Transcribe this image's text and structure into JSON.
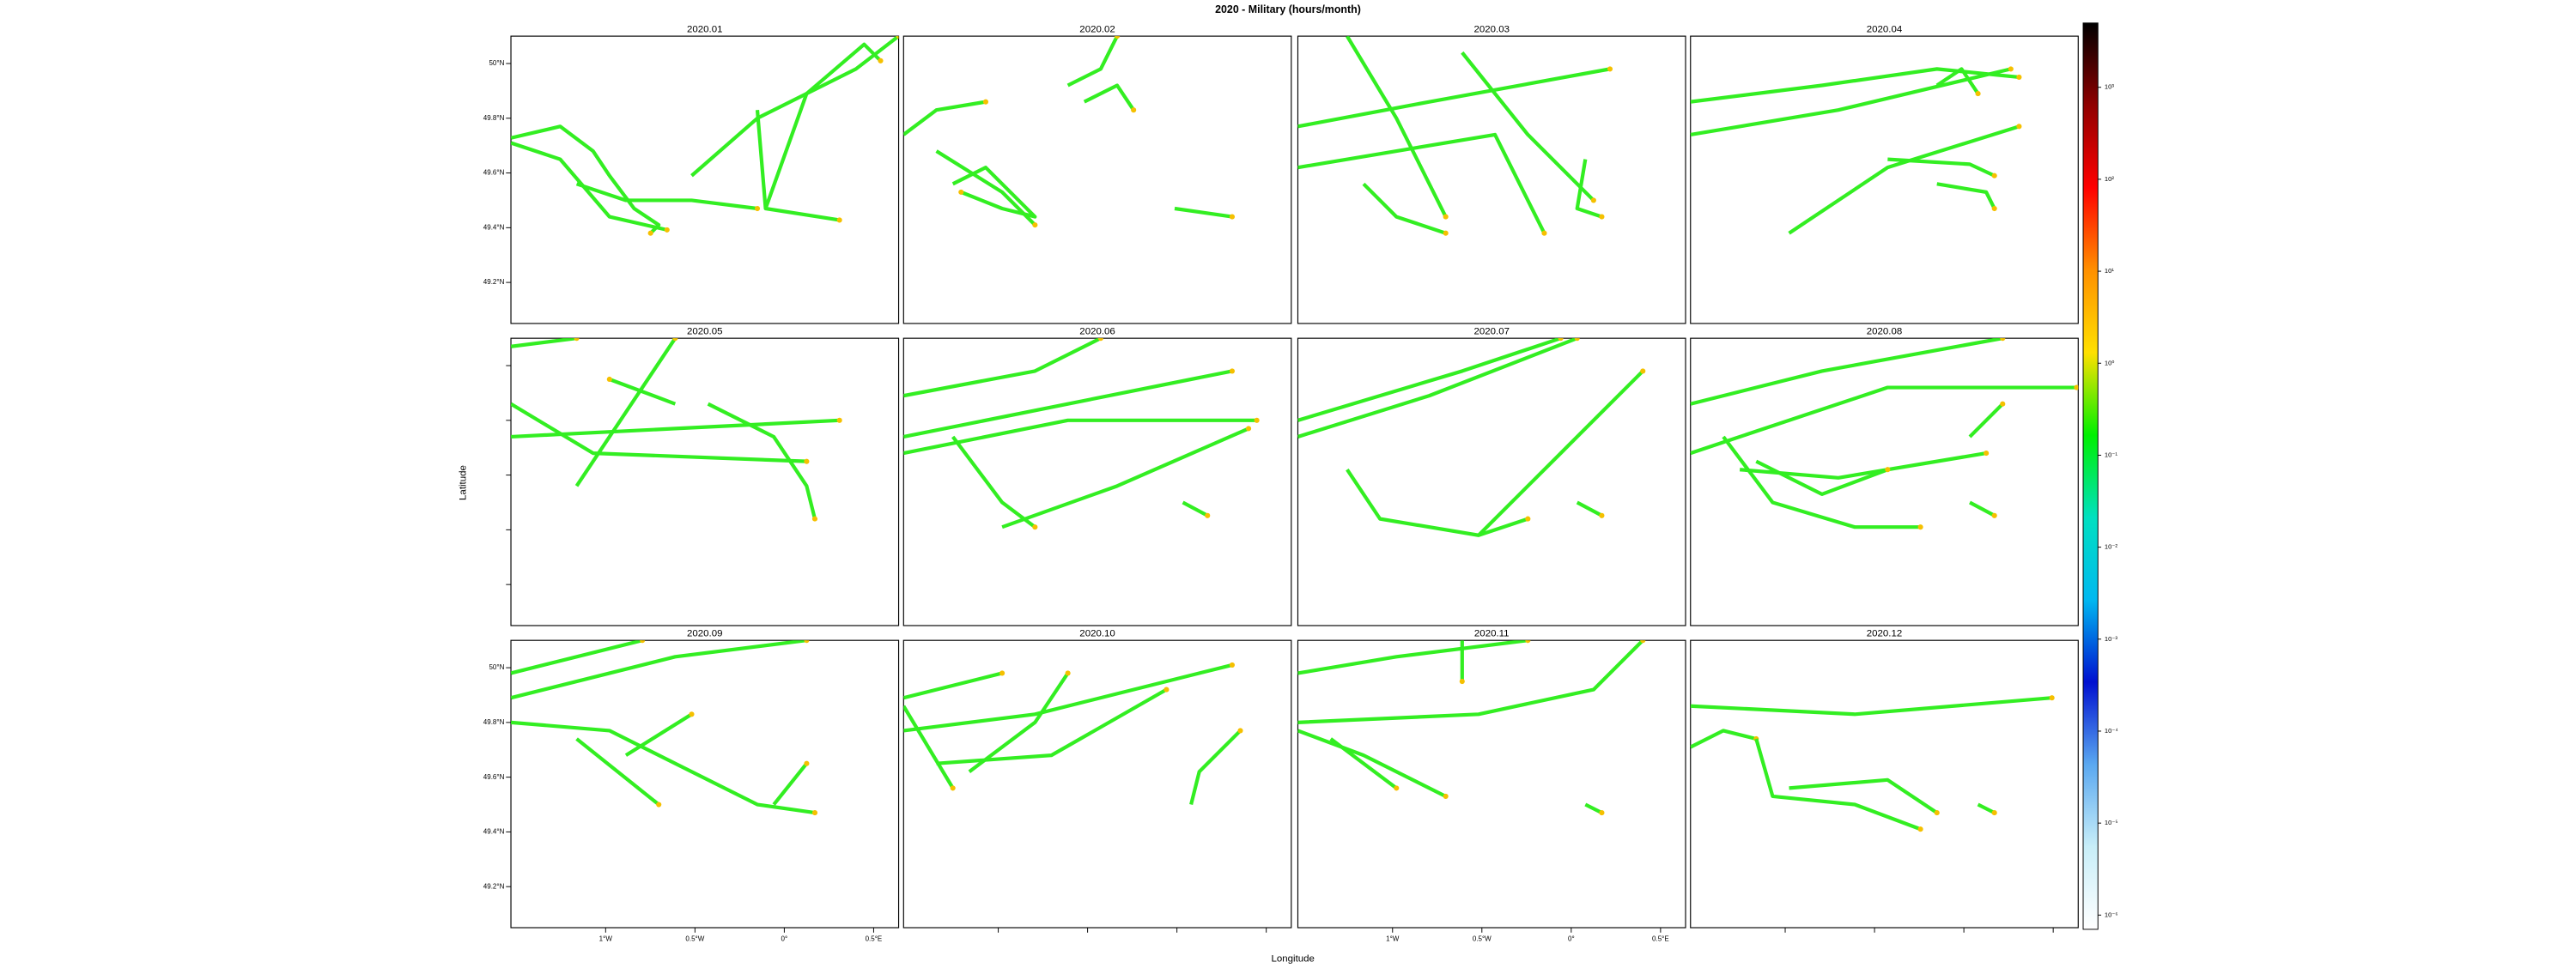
{
  "chart_data": {
    "type": "map",
    "title": "2020 - Military (hours/month)",
    "x_label": "Longitude",
    "y_label": "Latitude",
    "panels": [
      "2020.01",
      "2020.02",
      "2020.03",
      "2020.04",
      "2020.05",
      "2020.06",
      "2020.07",
      "2020.08",
      "2020.09",
      "2020.10",
      "2020.11",
      "2020.12"
    ],
    "xlim": [
      -1.53,
      0.64
    ],
    "ylim": [
      49.05,
      50.1
    ],
    "xticks": [
      {
        "value": -1,
        "label": "1°W"
      },
      {
        "value": -0.5,
        "label": "0.5°W"
      },
      {
        "value": 0,
        "label": "0°"
      },
      {
        "value": 0.5,
        "label": "0.5°E"
      }
    ],
    "yticks": [
      {
        "value": 49.2,
        "label": "49.2°N"
      },
      {
        "value": 49.4,
        "label": "49.4°N"
      },
      {
        "value": 49.6,
        "label": "49.6°N"
      },
      {
        "value": 49.8,
        "label": "49.8°N"
      },
      {
        "value": 50,
        "label": "50°N"
      }
    ],
    "colorbar": {
      "log_scale": true,
      "clim": [
        7e-07,
        5000
      ],
      "colormap": [
        "#ffffff",
        "#c8eef8",
        "#5aa8f0",
        "#0010d0",
        "#00b8f0",
        "#00e0c0",
        "#00f000",
        "#ffe000",
        "#ff9000",
        "#ff0000",
        "#900000",
        "#000000"
      ],
      "ticks": [
        {
          "value": 1e-06,
          "label": "10⁻⁶"
        },
        {
          "value": 1e-05,
          "label": "10⁻⁵"
        },
        {
          "value": 0.0001,
          "label": "10⁻⁴"
        },
        {
          "value": 0.001,
          "label": "10⁻³"
        },
        {
          "value": 0.01,
          "label": "10⁻²"
        },
        {
          "value": 0.1,
          "label": "10⁻¹"
        },
        {
          "value": 1,
          "label": "10⁰"
        },
        {
          "value": 10,
          "label": "10¹"
        },
        {
          "value": 100,
          "label": "10²"
        },
        {
          "value": 1000,
          "label": "10³"
        }
      ]
    }
  }
}
